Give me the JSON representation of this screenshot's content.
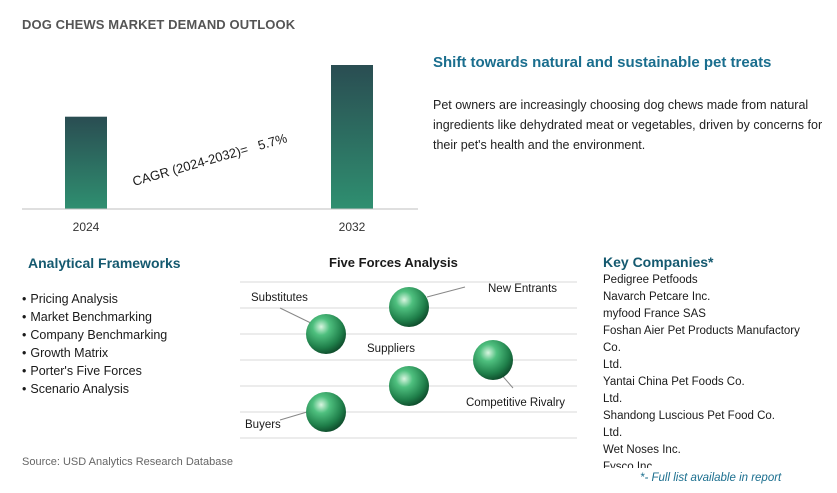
{
  "page_title": "DOG CHEWS MARKET DEMAND OUTLOOK",
  "chart_data": {
    "type": "bar",
    "categories": [
      "2024",
      "2032"
    ],
    "values": [
      1.0,
      1.56
    ],
    "title": "",
    "xlabel": "",
    "ylabel": "",
    "annotation": "CAGR (2024-2032)=   5.7%",
    "bar_color_top": "#2a4d52",
    "bar_color_bottom": "#2f8f70"
  },
  "headline": "Shift towards natural and sustainable pet treats",
  "description": "Pet owners are increasingly choosing dog chews made from natural ingredients like dehydrated meat or vegetables, driven by concerns for their pet's health and the environment.",
  "frameworks": {
    "title": "Analytical Frameworks",
    "items": [
      "Pricing Analysis",
      "Market Benchmarking",
      "Company Benchmarking",
      "Growth Matrix",
      "Porter's Five Forces",
      "Scenario Analysis"
    ]
  },
  "five_forces": {
    "title": "Five Forces Analysis",
    "labels": {
      "substitutes": "Substitutes",
      "new_entrants": "New Entrants",
      "suppliers": "Suppliers",
      "competitive_rivalry": "Competitive Rivalry",
      "buyers": "Buyers"
    },
    "ball_color": "#2e9e64"
  },
  "companies": {
    "title": "Key Companies*",
    "lines": [
      "Pedigree Petfoods",
      "Navarch Petcare Inc.",
      "myfood France SAS",
      "Foshan Aier Pet Products Manufactory",
      "Co.",
      "Ltd.",
      "Yantai China Pet Foods Co.",
      "Ltd.",
      "Shandong Luscious Pet Food Co.",
      "Ltd.",
      "Wet Noses Inc.",
      "Fysco Inc."
    ],
    "note": "*- Full list available in report"
  },
  "source": "Source: USD Analytics Research Database"
}
